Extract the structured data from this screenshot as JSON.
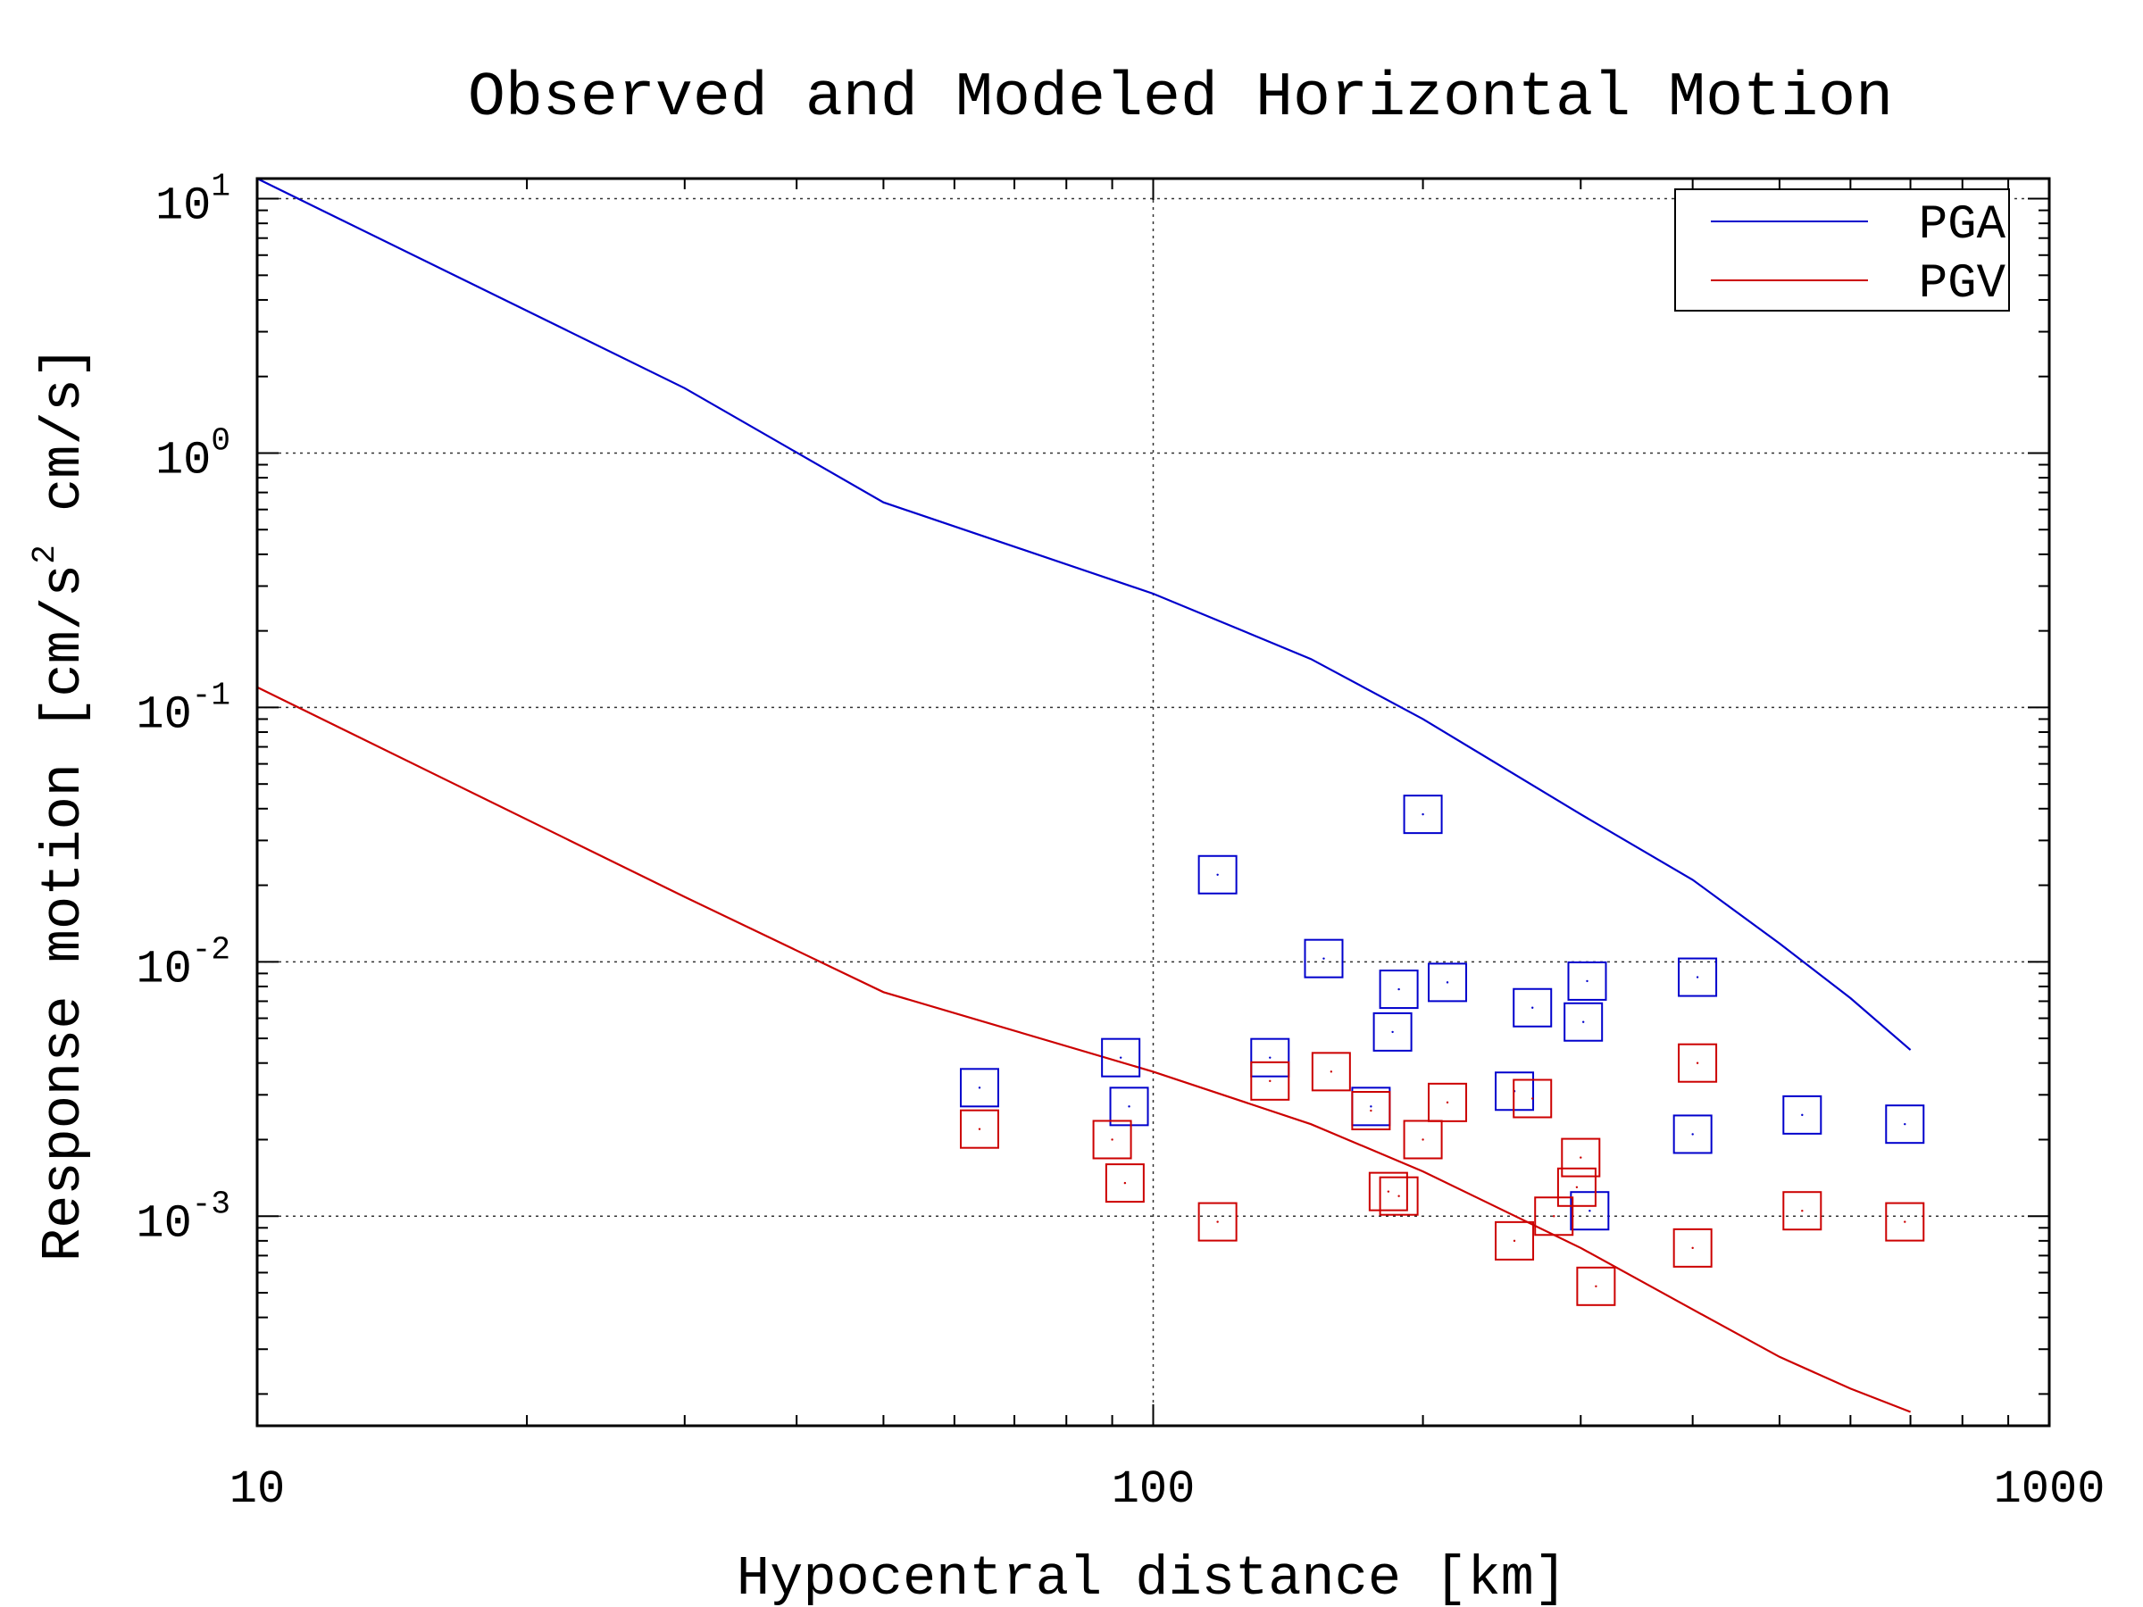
{
  "chart_data": {
    "type": "scatter",
    "title": "Observed and Modeled Horizontal Motion",
    "xlabel": "Hypocentral distance [km]",
    "ylabel": "Response motion [cm/s^2 cm/s]",
    "ylabel_parts": {
      "prefix": "Response motion [cm/s",
      "superscript": "2",
      "suffix": " cm/s]"
    },
    "x_scale": "log",
    "y_scale": "log",
    "xlim": [
      10,
      1000
    ],
    "ylim": [
      0.00015,
      12
    ],
    "grid": true,
    "legend_position": "top-right",
    "x_ticks": [
      {
        "value": 10,
        "label": "10"
      },
      {
        "value": 100,
        "label": "100"
      },
      {
        "value": 1000,
        "label": "1000"
      }
    ],
    "y_ticks": [
      {
        "value": 10,
        "base": "10",
        "exp": "1"
      },
      {
        "value": 1,
        "base": "10",
        "exp": "0"
      },
      {
        "value": 0.1,
        "base": "10",
        "exp": "-1"
      },
      {
        "value": 0.01,
        "base": "10",
        "exp": "-2"
      },
      {
        "value": 0.001,
        "base": "10",
        "exp": "-3"
      }
    ],
    "series": [
      {
        "name": "PGA",
        "kind": "line",
        "color": "#0000cc",
        "x": [
          10,
          30,
          50,
          100,
          150,
          200,
          300,
          400,
          500,
          600,
          700
        ],
        "y": [
          12,
          1.8,
          0.64,
          0.28,
          0.155,
          0.09,
          0.038,
          0.021,
          0.0118,
          0.0072,
          0.0045
        ]
      },
      {
        "name": "PGV",
        "kind": "line",
        "color": "#cc0000",
        "x": [
          10,
          30,
          50,
          100,
          150,
          200,
          300,
          400,
          500,
          600,
          700
        ],
        "y": [
          0.12,
          0.018,
          0.0076,
          0.0037,
          0.0023,
          0.0015,
          0.00075,
          0.00043,
          0.00028,
          0.00021,
          0.00017
        ]
      },
      {
        "kind": "markers",
        "color": "#0000cc",
        "x": [
          64,
          92,
          94,
          118,
          135,
          155,
          175,
          185,
          188,
          200,
          213,
          253,
          265,
          302,
          305,
          307,
          400,
          405,
          530,
          690
        ],
        "y": [
          0.0032,
          0.0042,
          0.0027,
          0.022,
          0.0042,
          0.0103,
          0.0027,
          0.0053,
          0.0078,
          0.038,
          0.0083,
          0.0031,
          0.0066,
          0.0058,
          0.0084,
          0.00105,
          0.0021,
          0.0087,
          0.0025,
          0.0023
        ]
      },
      {
        "kind": "markers",
        "color": "#cc0000",
        "x": [
          64,
          90,
          93,
          118,
          135,
          158,
          175,
          183,
          188,
          200,
          213,
          253,
          265,
          280,
          297,
          300,
          312,
          400,
          405,
          530,
          690
        ],
        "y": [
          0.0022,
          0.002,
          0.00135,
          0.00095,
          0.0034,
          0.0037,
          0.0026,
          0.00125,
          0.0012,
          0.002,
          0.0028,
          0.0008,
          0.0029,
          0.001,
          0.0013,
          0.0017,
          0.00053,
          0.00075,
          0.004,
          0.00105,
          0.00095
        ]
      }
    ]
  }
}
